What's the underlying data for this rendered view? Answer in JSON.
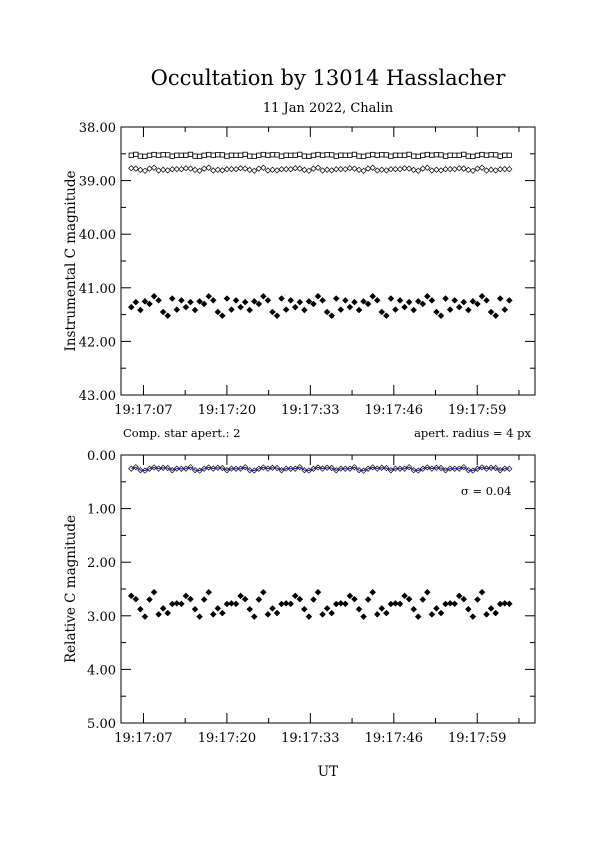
{
  "title": "Occultation by 13014 Hasslacher",
  "subtitle": "11 Jan 2022, Chalin",
  "xlabel": "UT",
  "x_tick_labels": [
    "19:17:07",
    "19:17:20",
    "19:17:33",
    "19:17:46",
    "19:17:59"
  ],
  "colors": {
    "fit": "#1a1aa8",
    "marker": "#000000"
  },
  "chart_data": [
    {
      "type": "scatter",
      "ylabel": "Instrumental C magnitude",
      "ylim": [
        43.0,
        38.0
      ],
      "y_inverted": true,
      "y_tick_labels": [
        "38.00",
        "39.00",
        "40.00",
        "41.00",
        "42.00",
        "43.00"
      ],
      "x_range_seconds": [
        -3.5,
        61
      ],
      "x_start_time": "19:17:07",
      "sample_count": 84,
      "series": [
        {
          "marker": "open-square",
          "level": 38.53,
          "scatter": 0.02
        },
        {
          "marker": "open-diamond",
          "level": 38.79,
          "scatter": 0.03
        },
        {
          "marker": "filled-diamond",
          "level": 41.35,
          "scatter": 0.22
        }
      ]
    },
    {
      "type": "scatter",
      "ylabel": "Relative C magnitude",
      "ylim": [
        5.0,
        0.0
      ],
      "y_inverted": true,
      "y_tick_labels": [
        "0.00",
        "1.00",
        "2.00",
        "3.00",
        "4.00",
        "5.00"
      ],
      "left_note": "Comp. star apert.: 2",
      "right_note": "apert. radius = 4 px",
      "sigma_label": "σ = 0.04",
      "series": [
        {
          "marker": "open-diamond",
          "level": 0.26,
          "scatter": 0.035,
          "fit_line": true
        },
        {
          "marker": "filled-diamond",
          "level": 2.8,
          "scatter": 0.24
        }
      ]
    }
  ]
}
